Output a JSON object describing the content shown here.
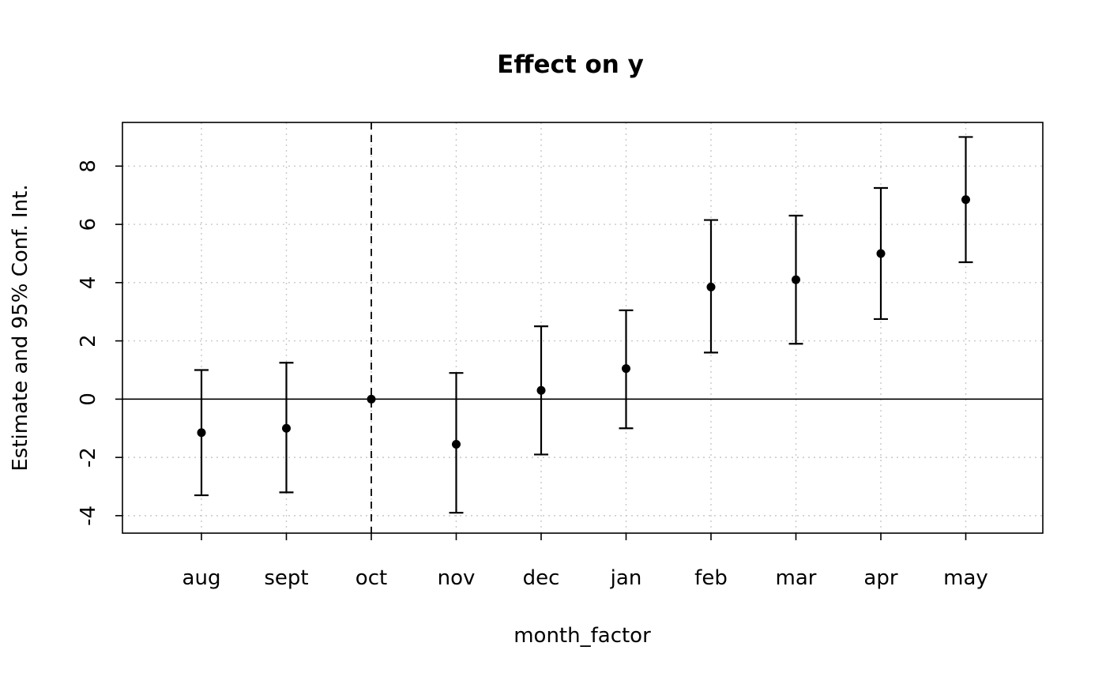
{
  "chart_data": {
    "type": "scatter",
    "subtype": "coefficient-plot-with-95ci-error-bars",
    "title": "Effect on y",
    "xlabel": "month_factor",
    "ylabel": "Estimate and 95% Conf. Int.",
    "categories": [
      "aug",
      "sept",
      "oct",
      "nov",
      "dec",
      "jan",
      "feb",
      "mar",
      "apr",
      "may"
    ],
    "estimates": [
      -1.15,
      -1.0,
      0,
      -1.55,
      0.3,
      1.05,
      3.85,
      4.1,
      5.0,
      6.85
    ],
    "ci_lower": [
      -3.3,
      -3.2,
      0,
      -3.9,
      -1.9,
      -1.0,
      1.6,
      1.9,
      2.75,
      4.7
    ],
    "ci_upper": [
      1.0,
      1.25,
      0,
      0.9,
      2.5,
      3.05,
      6.15,
      6.3,
      7.25,
      9.0
    ],
    "reference_category": "oct",
    "yticks": [
      -4,
      -2,
      0,
      2,
      4,
      6,
      8
    ],
    "ylim": [
      -4.6,
      9.5
    ],
    "hline": 0,
    "grid": true,
    "grid_style": "dotted",
    "legend": "none",
    "colors": {
      "point": "#000000",
      "axis": "#000000",
      "grid": "#c8c8c8",
      "background": "#ffffff"
    }
  }
}
